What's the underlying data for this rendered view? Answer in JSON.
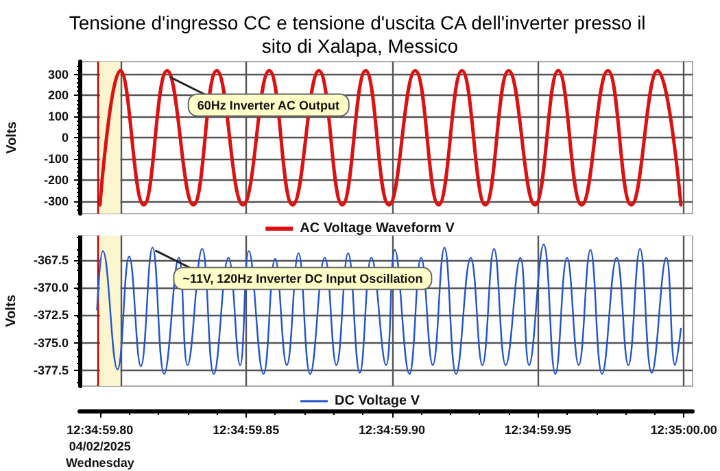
{
  "chart_data": [
    {
      "type": "line",
      "title": "Tensione d'ingresso CC e tensione d'uscita CA dell'inverter presso il sito di Xalapa, Messico",
      "ylabel": "Volts",
      "x": [
        "2025-04-02T12:34:59.800",
        "2025-04-02T12:34:59.807",
        "2025-04-02T12:34:59.815",
        "2025-04-02T12:34:59.823",
        "2025-04-02T12:34:59.832",
        "2025-04-02T12:34:59.840",
        "2025-04-02T12:34:59.849",
        "2025-04-02T12:34:59.858",
        "2025-04-02T12:34:59.866",
        "2025-04-02T12:34:59.875",
        "2025-04-02T12:34:59.883",
        "2025-04-02T12:34:59.891",
        "2025-04-02T12:34:59.899",
        "2025-04-02T12:34:59.908",
        "2025-04-02T12:34:59.916",
        "2025-04-02T12:34:59.924",
        "2025-04-02T12:34:59.932",
        "2025-04-02T12:34:59.940",
        "2025-04-02T12:34:59.949",
        "2025-04-02T12:34:59.957",
        "2025-04-02T12:34:59.965",
        "2025-04-02T12:34:59.974",
        "2025-04-02T12:34:59.982",
        "2025-04-02T12:34:59.991",
        "2025-04-02T12:34:59.999"
      ],
      "series": [
        {
          "name": "AC Voltage Waveform V",
          "color": "#dd1111",
          "values": [
            -319,
            317,
            -319,
            317,
            -319,
            317,
            -319,
            317,
            -319,
            317,
            -319,
            317,
            -319,
            317,
            -319,
            317,
            -319,
            317,
            -319,
            317,
            -319,
            317,
            -319,
            317,
            -319
          ]
        }
      ],
      "xlim": [
        "2025-04-02T12:34:59.793",
        "2025-04-02T12:35:00.003"
      ],
      "xticks": [
        "2025-04-02T12:34:59.800",
        "2025-04-02T12:34:59.850",
        "2025-04-02T12:34:59.900",
        "2025-04-02T12:34:59.950",
        "2025-04-02T12:35:00.000"
      ],
      "ylim": [
        -360,
        360
      ],
      "yticks": [
        -300,
        -200,
        -100,
        0,
        100,
        200,
        300
      ],
      "tick_labels": "y",
      "grid": true,
      "legend": "bottom",
      "marker": "none",
      "bands": [
        {
          "axis": "x",
          "from": "2025-04-02T12:34:59.800",
          "to": "2025-04-02T12:34:59.807",
          "color": "#fbf6d0"
        }
      ],
      "ref_lines": [
        {
          "axis": "x",
          "value": "2025-04-02T12:34:59.799",
          "color": "#c00000"
        },
        {
          "axis": "x",
          "value": "2025-04-02T12:34:59.807",
          "color": "#555555"
        }
      ],
      "annotations": [
        {
          "text": "60Hz Inverter AC Output",
          "x": "2025-04-02T12:34:59.823",
          "y": 300
        }
      ]
    },
    {
      "type": "line",
      "ylabel": "Volts",
      "x": [
        "2025-04-02T12:34:59.799",
        "2025-04-02T12:34:59.801",
        "2025-04-02T12:34:59.806",
        "2025-04-02T12:34:59.810",
        "2025-04-02T12:34:59.814",
        "2025-04-02T12:34:59.818",
        "2025-04-02T12:34:59.822",
        "2025-04-02T12:34:59.827",
        "2025-04-02T12:34:59.830",
        "2025-04-02T12:34:59.835",
        "2025-04-02T12:34:59.839",
        "2025-04-02T12:34:59.844",
        "2025-04-02T12:34:59.848",
        "2025-04-02T12:34:59.851",
        "2025-04-02T12:34:59.856",
        "2025-04-02T12:34:59.860",
        "2025-04-02T12:34:59.864",
        "2025-04-02T12:34:59.868",
        "2025-04-02T12:34:59.872",
        "2025-04-02T12:34:59.877",
        "2025-04-02T12:34:59.881",
        "2025-04-02T12:34:59.885",
        "2025-04-02T12:34:59.889",
        "2025-04-02T12:34:59.893",
        "2025-04-02T12:34:59.898",
        "2025-04-02T12:34:59.901",
        "2025-04-02T12:34:59.906",
        "2025-04-02T12:34:59.910",
        "2025-04-02T12:34:59.914",
        "2025-04-02T12:34:59.918",
        "2025-04-02T12:34:59.922",
        "2025-04-02T12:34:59.927",
        "2025-04-02T12:34:59.931",
        "2025-04-02T12:34:59.935",
        "2025-04-02T12:34:59.939",
        "2025-04-02T12:34:59.944",
        "2025-04-02T12:34:59.947",
        "2025-04-02T12:34:59.952",
        "2025-04-02T12:34:59.956",
        "2025-04-02T12:34:59.960",
        "2025-04-02T12:34:59.964",
        "2025-04-02T12:34:59.968",
        "2025-04-02T12:34:59.972",
        "2025-04-02T12:34:59.977",
        "2025-04-02T12:34:59.981",
        "2025-04-02T12:34:59.985",
        "2025-04-02T12:34:59.989",
        "2025-04-02T12:34:59.994",
        "2025-04-02T12:34:59.997",
        "2025-04-02T12:34:59.999"
      ],
      "series": [
        {
          "name": "DC Voltage V",
          "color": "#2255cc",
          "values": [
            -372,
            -366.7,
            -377.4,
            -367.2,
            -377.1,
            -366.4,
            -377.8,
            -367.3,
            -377,
            -366.5,
            -377.8,
            -367.3,
            -377,
            -366.7,
            -377.8,
            -367.4,
            -377,
            -366.9,
            -377.8,
            -367.3,
            -377,
            -366.9,
            -377.7,
            -367.3,
            -377,
            -366.6,
            -377.8,
            -367.3,
            -377,
            -366.4,
            -377.8,
            -367.3,
            -377,
            -366.5,
            -377,
            -367.3,
            -377,
            -366.1,
            -377.8,
            -367.3,
            -377,
            -366.6,
            -377.8,
            -367.3,
            -377,
            -366.5,
            -377.7,
            -367.3,
            -377,
            -373.7
          ]
        }
      ],
      "xlim": [
        "2025-04-02T12:34:59.793",
        "2025-04-02T12:35:00.003"
      ],
      "xticks": [
        {
          "value": "2025-04-02T12:34:59.800",
          "label": "12:34:59.80\n04/02/2025\nWednesday"
        },
        {
          "value": "2025-04-02T12:34:59.850",
          "label": "12:34:59.85"
        },
        {
          "value": "2025-04-02T12:34:59.900",
          "label": "12:34:59.90"
        },
        {
          "value": "2025-04-02T12:34:59.950",
          "label": "12:34:59.95"
        },
        {
          "value": "2025-04-02T12:35:00.000",
          "label": "12:35:00.00"
        }
      ],
      "ylim": [
        -378.9,
        -365.3
      ],
      "yticks": [
        {
          "value": -377.5,
          "label": "-377.5"
        },
        {
          "value": -375,
          "label": "-375.0"
        },
        {
          "value": -372.5,
          "label": "-372.5"
        },
        {
          "value": -370,
          "label": "-370.0"
        },
        {
          "value": -367.5,
          "label": "-367.5"
        }
      ],
      "grid": true,
      "legend": "bottom",
      "marker": "none",
      "bands": [
        {
          "axis": "x",
          "from": "2025-04-02T12:34:59.800",
          "to": "2025-04-02T12:34:59.807",
          "color": "#fbf6d0"
        }
      ],
      "ref_lines": [
        {
          "axis": "x",
          "value": "2025-04-02T12:34:59.799",
          "color": "#c00000"
        },
        {
          "axis": "x",
          "value": "2025-04-02T12:34:59.807",
          "color": "#555555"
        }
      ],
      "annotations": [
        {
          "text": "~11V, 120Hz Inverter DC Input Oscillation",
          "x": "2025-04-02T12:34:59.818",
          "y": -366.4
        }
      ]
    }
  ]
}
